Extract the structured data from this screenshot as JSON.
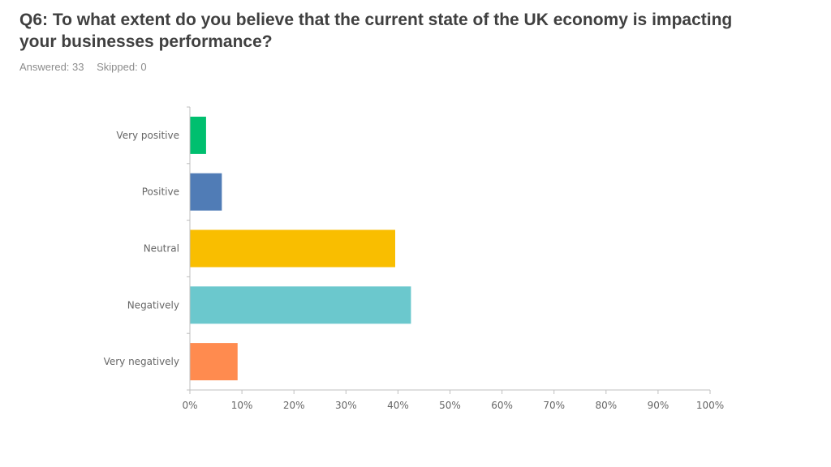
{
  "header": {
    "title": "Q6: To what extent do you believe that the current state of the UK economy is impacting your businesses performance?",
    "answered": "Answered: 33",
    "skipped": "Skipped: 0"
  },
  "chart_data": {
    "type": "bar",
    "orientation": "horizontal",
    "categories": [
      "Very positive",
      "Positive",
      "Neutral",
      "Negatively",
      "Very negatively"
    ],
    "values": [
      3.03,
      6.06,
      39.39,
      42.42,
      9.09
    ],
    "colors": [
      "#00BF6F",
      "#507CB6",
      "#F9BE00",
      "#6BC8CD",
      "#FF8B4F"
    ],
    "xlim": [
      0,
      100
    ],
    "xticks": [
      "0%",
      "10%",
      "20%",
      "30%",
      "40%",
      "50%",
      "60%",
      "70%",
      "80%",
      "90%",
      "100%"
    ],
    "title": "",
    "xlabel": "",
    "ylabel": "",
    "grid": false,
    "legend": "none"
  }
}
